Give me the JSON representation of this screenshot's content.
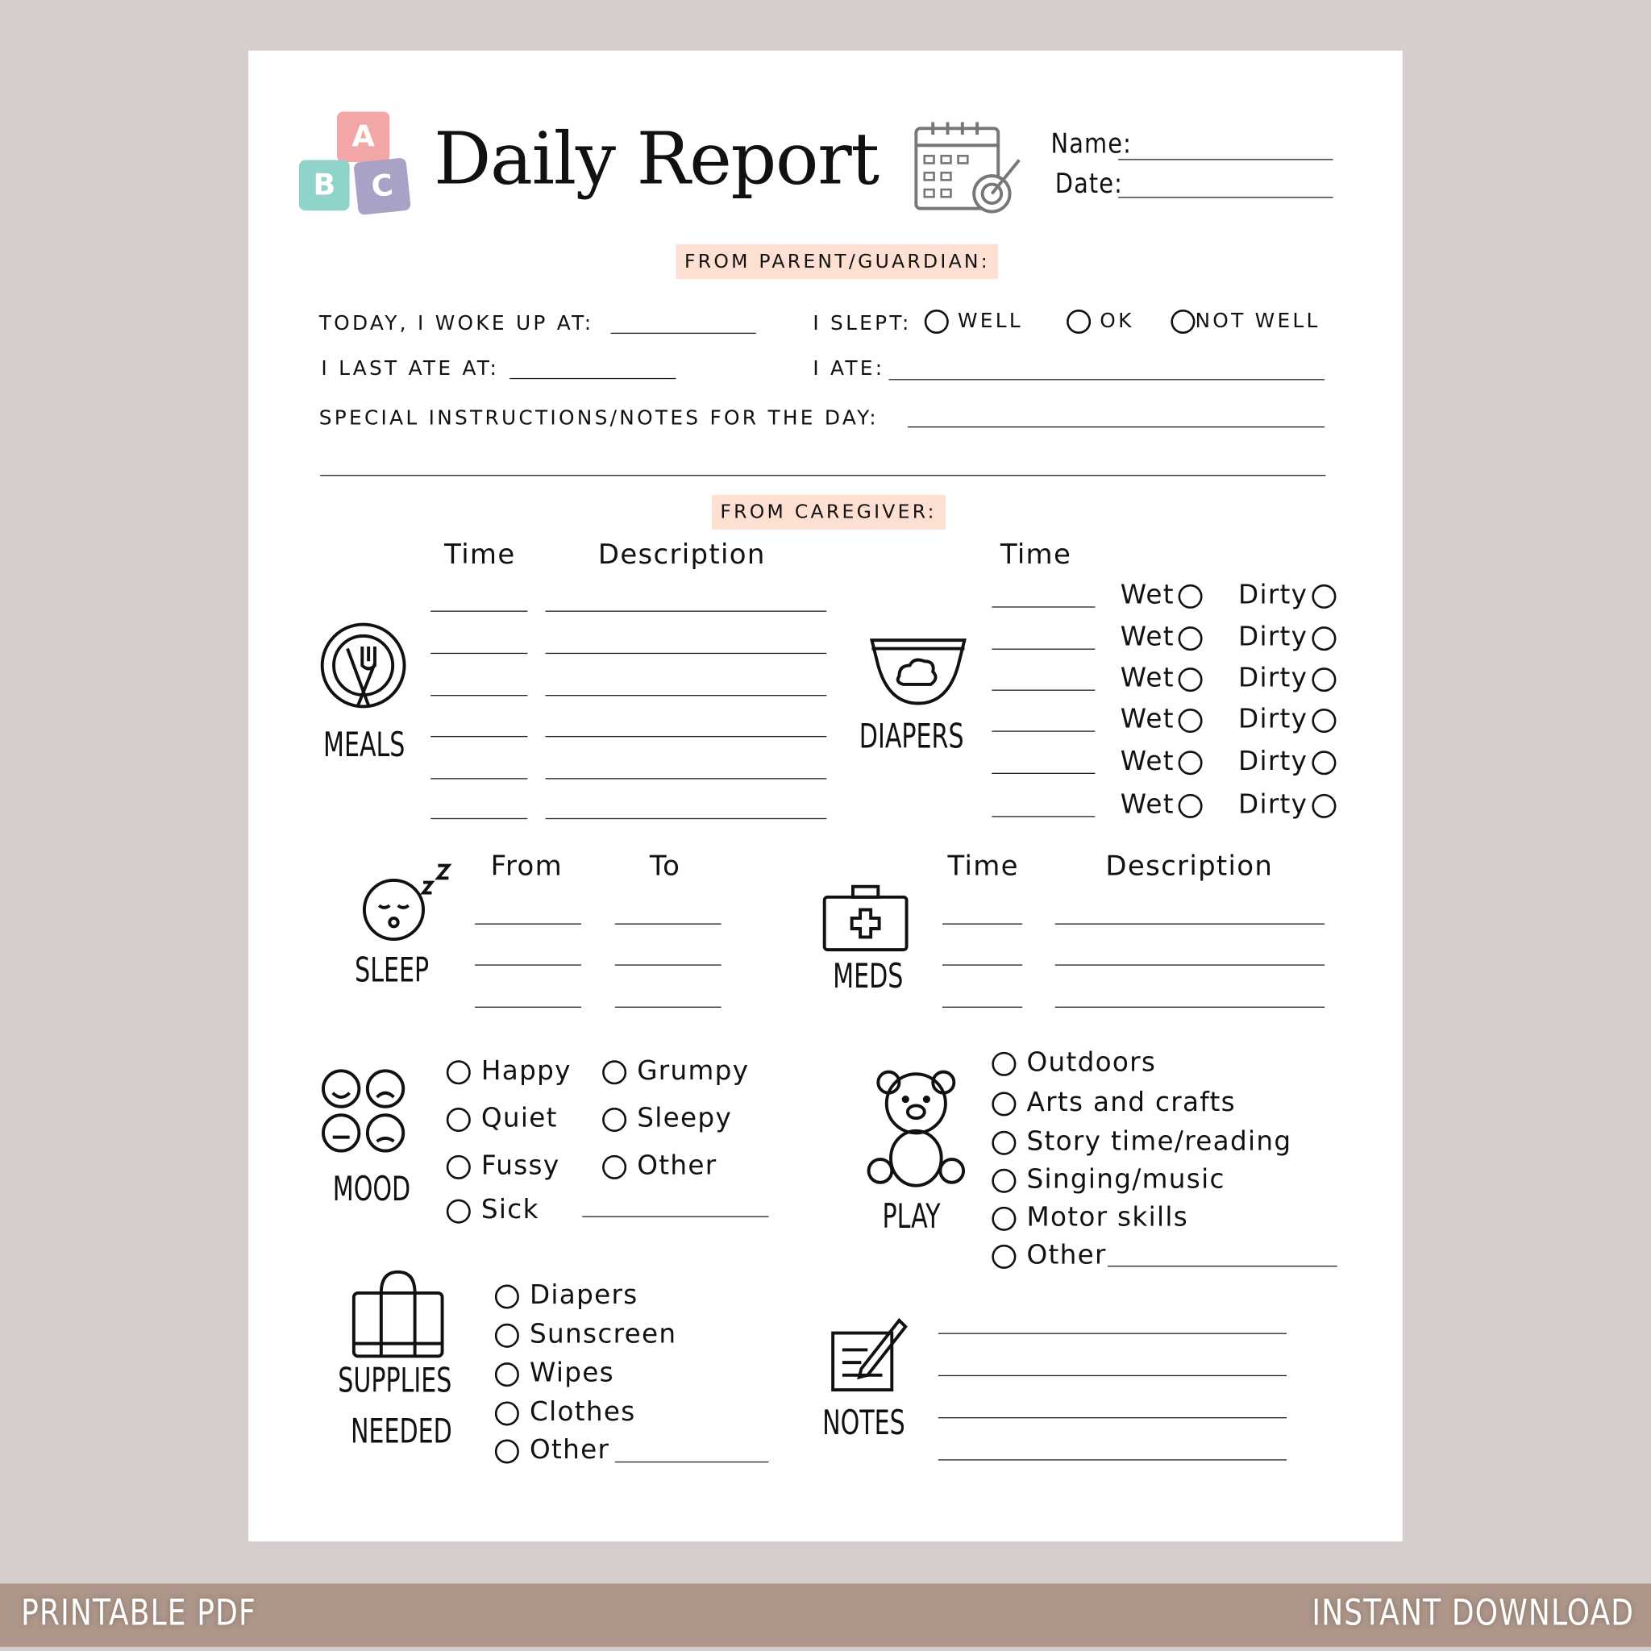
{
  "header": {
    "title": "Daily Report",
    "name_label": "Name:",
    "date_label": "Date:",
    "blocks": [
      "A",
      "B",
      "C"
    ],
    "block_colors": [
      "#f2a6a6",
      "#8fd3cb",
      "#a9a2c6"
    ]
  },
  "parent": {
    "heading": "FROM PARENT/GUARDIAN:",
    "woke_label": "TODAY, I WOKE UP AT:",
    "slept_label": "I SLEPT:",
    "slept_options": [
      "WELL",
      "OK",
      "NOT WELL"
    ],
    "last_ate_label": "I LAST ATE AT:",
    "ate_label": "I ATE:",
    "notes_label": "SPECIAL INSTRUCTIONS/NOTES FOR THE DAY:"
  },
  "caregiver": {
    "heading": "FROM CAREGIVER:",
    "meals": {
      "label": "MEALS",
      "time_header": "Time",
      "desc_header": "Description"
    },
    "diapers": {
      "label": "DIAPERS",
      "time_header": "Time",
      "wet_label": "Wet",
      "dirty_label": "Dirty"
    },
    "sleep": {
      "label": "SLEEP",
      "from_header": "From",
      "to_header": "To"
    },
    "meds": {
      "label": "MEDS",
      "time_header": "Time",
      "desc_header": "Description"
    },
    "mood": {
      "label": "MOOD",
      "options": [
        "Happy",
        "Grumpy",
        "Quiet",
        "Sleepy",
        "Fussy",
        "Other",
        "Sick"
      ]
    },
    "play": {
      "label": "PLAY",
      "options": [
        "Outdoors",
        "Arts and crafts",
        "Story time/reading",
        "Singing/music",
        "Motor skills",
        "Other"
      ]
    },
    "supplies": {
      "label_line1": "SUPPLIES",
      "label_line2": "NEEDED",
      "options": [
        "Diapers",
        "Sunscreen",
        "Wipes",
        "Clothes",
        "Other"
      ]
    },
    "notes": {
      "label": "NOTES"
    }
  },
  "banner": {
    "left": "PRINTABLE PDF",
    "right": "INSTANT DOWNLOAD",
    "color": "#ae978a"
  },
  "colors": {
    "background": "#d6cdcd",
    "highlight": "#fde0d2"
  }
}
